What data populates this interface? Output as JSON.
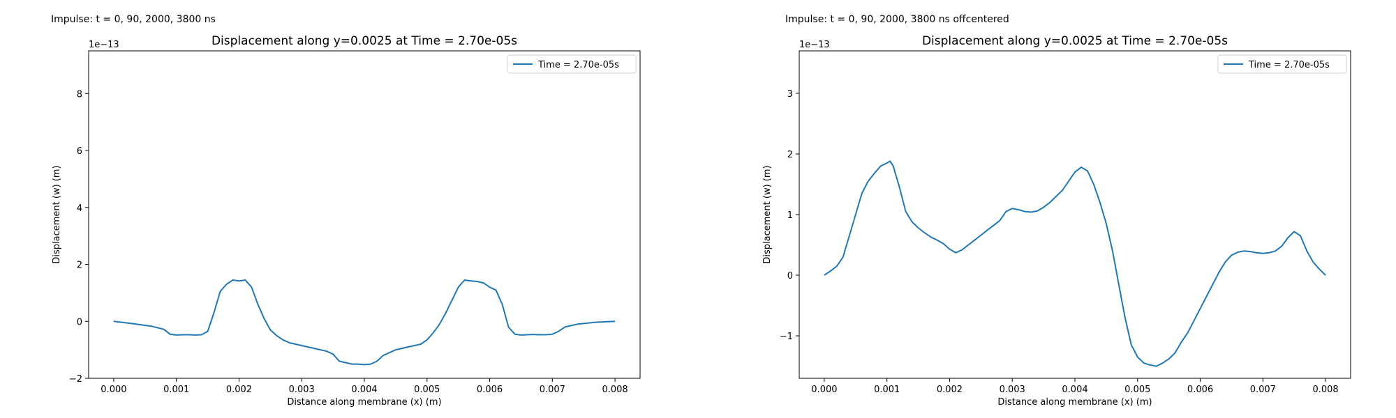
{
  "chart_data": [
    {
      "type": "line",
      "caption": "Impulse: t = 0, 90, 2000, 3800 ns",
      "title": "Displacement along y=0.0025 at Time = 2.70e-05s",
      "xlabel": "Distance along membrane (x) (m)",
      "ylabel": "Displacement (w) (m)",
      "y_offset_label": "1e−13",
      "xlim": [
        -0.0004,
        0.0084
      ],
      "ylim": [
        -2.0,
        9.5
      ],
      "xticks": [
        0.0,
        0.001,
        0.002,
        0.003,
        0.004,
        0.005,
        0.006,
        0.007,
        0.008
      ],
      "xtick_labels": [
        "0.000",
        "0.001",
        "0.002",
        "0.003",
        "0.004",
        "0.005",
        "0.006",
        "0.007",
        "0.008"
      ],
      "yticks": [
        -2,
        0,
        2,
        4,
        6,
        8
      ],
      "ytick_labels": [
        "−2",
        "0",
        "2",
        "4",
        "6",
        "8"
      ],
      "legend_position": "top-right",
      "series": [
        {
          "name": "Time = 2.70e-05s",
          "color": "#1f77b4",
          "x": [
            0.0,
            0.0003,
            0.0006,
            0.0008,
            0.0009,
            0.001,
            0.0011,
            0.0012,
            0.0013,
            0.0014,
            0.0015,
            0.0016,
            0.0017,
            0.0018,
            0.0019,
            0.002,
            0.0021,
            0.0022,
            0.0023,
            0.0024,
            0.0025,
            0.0026,
            0.0027,
            0.0028,
            0.0029,
            0.003,
            0.0032,
            0.0034,
            0.0035,
            0.0036,
            0.0037,
            0.0038,
            0.0039,
            0.004,
            0.0041,
            0.0042,
            0.0043,
            0.0044,
            0.0045,
            0.0047,
            0.0049,
            0.005,
            0.0051,
            0.0052,
            0.0053,
            0.0054,
            0.0055,
            0.0056,
            0.0057,
            0.0058,
            0.0059,
            0.006,
            0.0061,
            0.0062,
            0.0063,
            0.0064,
            0.0065,
            0.0066,
            0.0067,
            0.0068,
            0.0069,
            0.007,
            0.0071,
            0.0072,
            0.0074,
            0.0077,
            0.008
          ],
          "y": [
            0.0,
            -0.08,
            -0.17,
            -0.28,
            -0.45,
            -0.48,
            -0.47,
            -0.47,
            -0.48,
            -0.47,
            -0.35,
            0.3,
            1.05,
            1.3,
            1.45,
            1.42,
            1.45,
            1.2,
            0.6,
            0.1,
            -0.3,
            -0.5,
            -0.65,
            -0.75,
            -0.8,
            -0.85,
            -0.95,
            -1.05,
            -1.15,
            -1.4,
            -1.45,
            -1.5,
            -1.5,
            -1.52,
            -1.5,
            -1.4,
            -1.2,
            -1.1,
            -1.0,
            -0.9,
            -0.8,
            -0.65,
            -0.4,
            -0.1,
            0.3,
            0.75,
            1.2,
            1.45,
            1.42,
            1.4,
            1.35,
            1.2,
            1.1,
            0.6,
            -0.2,
            -0.45,
            -0.48,
            -0.47,
            -0.46,
            -0.47,
            -0.47,
            -0.45,
            -0.35,
            -0.2,
            -0.1,
            -0.03,
            0.0
          ]
        }
      ]
    },
    {
      "type": "line",
      "caption": "Impulse: t = 0, 90, 2000, 3800 ns offcentered",
      "title": "Displacement along y=0.0025 at Time = 2.70e-05s",
      "xlabel": "Distance along membrane (x) (m)",
      "ylabel": "Displacement (w) (m)",
      "y_offset_label": "1e−13",
      "xlim": [
        -0.0004,
        0.0084
      ],
      "ylim": [
        -1.7,
        3.7
      ],
      "xticks": [
        0.0,
        0.001,
        0.002,
        0.003,
        0.004,
        0.005,
        0.006,
        0.007,
        0.008
      ],
      "xtick_labels": [
        "0.000",
        "0.001",
        "0.002",
        "0.003",
        "0.004",
        "0.005",
        "0.006",
        "0.007",
        "0.008"
      ],
      "yticks": [
        -1,
        0,
        1,
        2,
        3
      ],
      "ytick_labels": [
        "−1",
        "0",
        "1",
        "2",
        "3"
      ],
      "legend_position": "top-right",
      "series": [
        {
          "name": "Time = 2.70e-05s",
          "color": "#1f77b4",
          "x": [
            0.0,
            0.0001,
            0.0002,
            0.0003,
            0.0004,
            0.0005,
            0.0006,
            0.0007,
            0.0008,
            0.0009,
            0.001,
            0.00105,
            0.0011,
            0.0012,
            0.0013,
            0.0014,
            0.0015,
            0.0016,
            0.0017,
            0.0018,
            0.0019,
            0.002,
            0.0021,
            0.0022,
            0.0023,
            0.0024,
            0.0025,
            0.0026,
            0.0027,
            0.0028,
            0.0029,
            0.003,
            0.0031,
            0.0032,
            0.0033,
            0.0034,
            0.0035,
            0.0036,
            0.0037,
            0.0038,
            0.0039,
            0.004,
            0.0041,
            0.0042,
            0.0043,
            0.0044,
            0.0045,
            0.0046,
            0.0047,
            0.0048,
            0.0049,
            0.005,
            0.0051,
            0.0052,
            0.0053,
            0.0054,
            0.0055,
            0.0056,
            0.0057,
            0.0058,
            0.0059,
            0.006,
            0.0061,
            0.0062,
            0.0063,
            0.0064,
            0.0065,
            0.0066,
            0.0067,
            0.0068,
            0.0069,
            0.007,
            0.0071,
            0.0072,
            0.0073,
            0.0074,
            0.0075,
            0.0076,
            0.0077,
            0.0078,
            0.0079,
            0.008
          ],
          "y": [
            0.0,
            0.07,
            0.15,
            0.3,
            0.65,
            1.0,
            1.35,
            1.55,
            1.68,
            1.8,
            1.85,
            1.88,
            1.8,
            1.45,
            1.05,
            0.88,
            0.78,
            0.7,
            0.63,
            0.58,
            0.52,
            0.43,
            0.37,
            0.42,
            0.5,
            0.58,
            0.66,
            0.74,
            0.82,
            0.9,
            1.05,
            1.1,
            1.08,
            1.05,
            1.04,
            1.06,
            1.12,
            1.2,
            1.3,
            1.4,
            1.55,
            1.7,
            1.78,
            1.72,
            1.5,
            1.2,
            0.85,
            0.4,
            -0.15,
            -0.7,
            -1.15,
            -1.35,
            -1.45,
            -1.48,
            -1.5,
            -1.45,
            -1.38,
            -1.28,
            -1.1,
            -0.95,
            -0.75,
            -0.55,
            -0.35,
            -0.15,
            0.05,
            0.22,
            0.33,
            0.38,
            0.4,
            0.39,
            0.37,
            0.36,
            0.37,
            0.4,
            0.48,
            0.62,
            0.72,
            0.65,
            0.4,
            0.22,
            0.1,
            0.0
          ]
        }
      ]
    }
  ]
}
